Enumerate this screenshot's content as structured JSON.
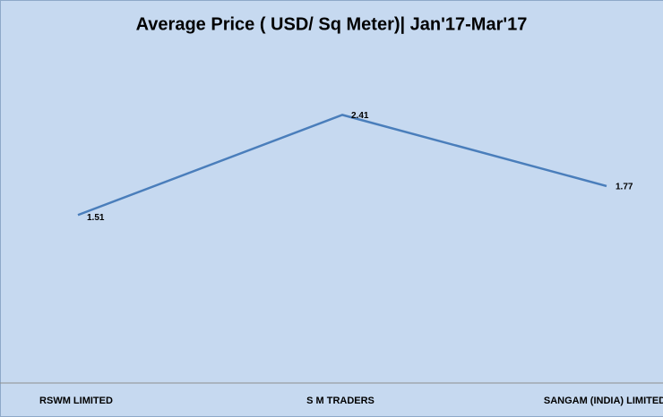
{
  "chart_data": {
    "type": "line",
    "title": "Average Price ( USD/ Sq Meter)| Jan'17-Mar'17",
    "categories": [
      "RSWM LIMITED",
      "S M TRADERS",
      "SANGAM (INDIA) LIMITED"
    ],
    "values": [
      1.51,
      2.41,
      1.77
    ],
    "color": "#4a7ebb",
    "ylim": [
      0,
      3
    ]
  }
}
